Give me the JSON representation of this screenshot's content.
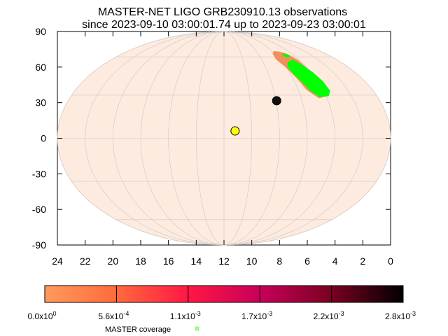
{
  "chart_data": {
    "type": "scatter",
    "title_line1": "MASTER-NET LIGO GRB230910.13 observations",
    "title_line2": "since 2023-09-10 03:00:01.74 up to 2023-09-23 03:00:01",
    "projection": "mollweide",
    "x_axis": {
      "unit": "hours (RA)",
      "range": [
        24,
        0
      ],
      "reversed": true,
      "ticks": [
        24,
        22,
        20,
        18,
        16,
        14,
        12,
        10,
        8,
        6,
        4,
        2,
        0
      ]
    },
    "y_axis": {
      "unit": "degrees (Dec)",
      "range": [
        -90,
        90
      ],
      "ticks": [
        90,
        60,
        30,
        0,
        -30,
        -60,
        -90
      ]
    },
    "grid": true,
    "colors": {
      "sky_fill": "#fdebdf",
      "probability_region": "#f0915a",
      "coverage": "#00ff00",
      "sun": "#ffff00",
      "moon": "#111111",
      "grid": "#c8c8c8"
    },
    "markers": [
      {
        "name": "sun-marker",
        "ra_hours": 11.2,
        "dec": 5
      },
      {
        "name": "moon-marker",
        "ra_hours": 7.95,
        "dec": 26
      }
    ],
    "colorbar": {
      "colors": [
        "#ff9a5c",
        "#ff6a3c",
        "#ff1744",
        "#c8005a",
        "#7a0020",
        "#000000"
      ],
      "tick_labels": [
        {
          "mant": "0.0x10",
          "exp": "0"
        },
        {
          "mant": "5.6x10",
          "exp": "-4"
        },
        {
          "mant": "1.1x10",
          "exp": "-3"
        },
        {
          "mant": "1.7x10",
          "exp": "-3"
        },
        {
          "mant": "2.2x10",
          "exp": "-3"
        },
        {
          "mant": "2.8x10",
          "exp": "-3"
        }
      ]
    },
    "legend": {
      "label": "MASTER coverage",
      "placement": "bottom-center"
    }
  }
}
